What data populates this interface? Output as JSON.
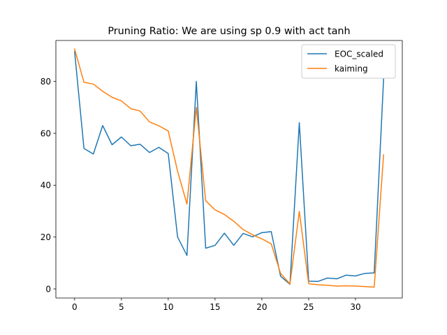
{
  "chart_data": {
    "type": "line",
    "title": "Pruning Ratio: We are using sp 0.9 with act tanh",
    "xlabel": "",
    "ylabel": "",
    "xlim": [
      -2,
      35
    ],
    "ylim": [
      -3.5,
      95.8
    ],
    "xticks": [
      0,
      5,
      10,
      15,
      20,
      25,
      30
    ],
    "yticks": [
      0,
      20,
      40,
      60,
      80
    ],
    "grid": false,
    "legend_position": "top-right",
    "x": [
      0,
      1,
      2,
      3,
      4,
      5,
      6,
      7,
      8,
      9,
      10,
      11,
      12,
      13,
      14,
      15,
      16,
      17,
      18,
      19,
      20,
      21,
      22,
      23,
      24,
      25,
      26,
      27,
      28,
      29,
      30,
      31,
      32,
      33
    ],
    "series": [
      {
        "name": "EOC_scaled",
        "color": "#1f77b4",
        "values": [
          91.5,
          54.2,
          52.0,
          63.0,
          55.6,
          58.6,
          55.2,
          55.8,
          52.6,
          54.6,
          52.2,
          20.0,
          12.9,
          80.0,
          15.7,
          16.8,
          21.5,
          16.8,
          21.4,
          20.1,
          21.7,
          22.1,
          4.9,
          1.8,
          64.1,
          3.0,
          2.9,
          4.2,
          3.9,
          5.3,
          5.0,
          6.0,
          6.2,
          80.9
        ]
      },
      {
        "name": "kaiming",
        "color": "#ff7f0e",
        "values": [
          92.5,
          79.7,
          79.0,
          76.2,
          73.9,
          72.5,
          69.5,
          68.6,
          64.4,
          62.9,
          60.9,
          45.4,
          32.7,
          70.0,
          34.0,
          30.5,
          28.7,
          26.1,
          22.9,
          20.9,
          19.3,
          17.4,
          6.0,
          1.9,
          29.9,
          2.0,
          1.6,
          1.4,
          1.1,
          1.2,
          1.1,
          0.9,
          0.7,
          51.7
        ]
      }
    ]
  }
}
